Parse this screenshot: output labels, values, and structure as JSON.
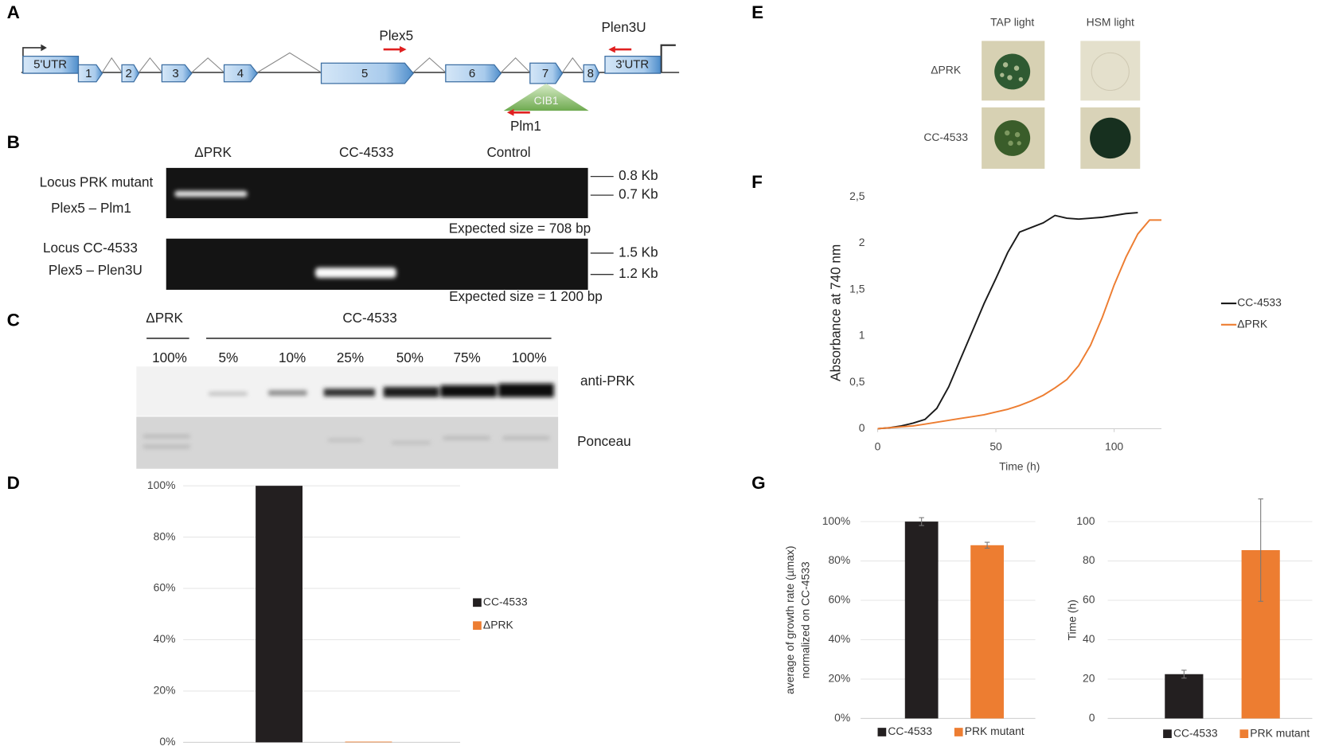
{
  "panel_labels": [
    "A",
    "B",
    "C",
    "D",
    "E",
    "F",
    "G"
  ],
  "gene_diagram": {
    "utr5": "5'UTR",
    "exons": [
      "1",
      "2",
      "3",
      "4",
      "5",
      "6",
      "7",
      "8"
    ],
    "utr3": "3'UTR",
    "primers": {
      "plex5": "Plex5",
      "plen3u": "Plen3U",
      "plm1": "Plm1"
    },
    "insert": "CIB1"
  },
  "gel": {
    "lanes": [
      "ΔPRK",
      "CC-4533",
      "Control"
    ],
    "top": {
      "locus": "Locus PRK mutant",
      "primers": "Plex5 – Plm1",
      "markers": [
        "0.8 Kb",
        "0.7 Kb"
      ],
      "expected": "Expected size = 708 bp"
    },
    "bottom": {
      "locus": "Locus CC-4533",
      "primers": "Plex5 – Plen3U",
      "markers": [
        "1.5 Kb",
        "1.2 Kb"
      ],
      "expected": "Expected size = 1 200 bp"
    }
  },
  "western": {
    "groups": [
      "ΔPRK",
      "CC-4533"
    ],
    "lanes": [
      "100%",
      "5%",
      "10%",
      "25%",
      "50%",
      "75%",
      "100%"
    ],
    "blots": [
      "anti-PRK",
      "Ponceau"
    ]
  },
  "plates": {
    "columns": [
      "TAP light",
      "HSM light"
    ],
    "rows": [
      "ΔPRK",
      "CC-4533"
    ]
  },
  "chart_data": [
    {
      "type": "bar",
      "categories": [
        null
      ],
      "series": [
        {
          "name": "CC-4533",
          "color": "#231f20",
          "values": [
            100
          ]
        },
        {
          "name": "ΔPRK",
          "color": "#ed7d31",
          "values": [
            0
          ]
        }
      ],
      "ylim": [
        0,
        100
      ],
      "yticks": [
        {
          "value": 0,
          "label": "0%"
        },
        {
          "value": 20,
          "label": "20%"
        },
        {
          "value": 40,
          "label": "40%"
        },
        {
          "value": 60,
          "label": "60%"
        },
        {
          "value": 80,
          "label": "80%"
        },
        {
          "value": 100,
          "label": "100%"
        }
      ],
      "grid": true,
      "legend": "right"
    },
    {
      "type": "line",
      "x_label": "Time (h)",
      "y_label": "Absorbance at 740 nm",
      "series": [
        {
          "name": "CC-4533",
          "color": "#1a1a1a",
          "x": [
            0,
            5,
            10,
            15,
            20,
            25,
            30,
            35,
            40,
            45,
            50,
            55,
            60,
            65,
            70,
            75,
            80,
            85,
            90,
            95,
            100,
            105,
            110
          ],
          "values": [
            0,
            0.01,
            0.03,
            0.06,
            0.1,
            0.22,
            0.45,
            0.75,
            1.05,
            1.35,
            1.62,
            1.9,
            2.12,
            2.17,
            2.22,
            2.3,
            2.27,
            2.26,
            2.27,
            2.28,
            2.3,
            2.32,
            2.33
          ]
        },
        {
          "name": "ΔPRK",
          "color": "#ed7d31",
          "x": [
            0,
            5,
            10,
            15,
            20,
            25,
            30,
            35,
            40,
            45,
            50,
            55,
            60,
            65,
            70,
            75,
            80,
            85,
            90,
            95,
            100,
            105,
            110,
            115,
            120
          ],
          "values": [
            0,
            0.01,
            0.02,
            0.03,
            0.05,
            0.07,
            0.09,
            0.11,
            0.13,
            0.15,
            0.18,
            0.21,
            0.25,
            0.3,
            0.36,
            0.44,
            0.53,
            0.68,
            0.9,
            1.2,
            1.55,
            1.85,
            2.1,
            2.25,
            2.25
          ]
        }
      ],
      "xlim": [
        0,
        120
      ],
      "xticks": [
        0,
        50,
        100
      ],
      "ylim": [
        0,
        2.5
      ],
      "yticks": [
        0,
        {
          "value": 0.5,
          "label": "0,5"
        },
        1,
        {
          "value": 1.5,
          "label": "1,5"
        },
        2,
        {
          "value": 2.5,
          "label": "2,5"
        }
      ],
      "grid": false,
      "legend": "right"
    },
    {
      "type": "bar",
      "categories": [
        null
      ],
      "y_label": [
        "average of growth rate (µmax)",
        "normalized on CC-4533"
      ],
      "series": [
        {
          "name": "CC-4533",
          "color": "#231f20",
          "values": [
            100
          ],
          "errors": [
            2
          ]
        },
        {
          "name": "PRK mutant",
          "color": "#ed7d31",
          "values": [
            88
          ],
          "errors": [
            1.5
          ]
        }
      ],
      "ylim": [
        0,
        100
      ],
      "yticks": [
        {
          "value": 0,
          "label": "0%"
        },
        {
          "value": 20,
          "label": "20%"
        },
        {
          "value": 40,
          "label": "40%"
        },
        {
          "value": 60,
          "label": "60%"
        },
        {
          "value": 80,
          "label": "80%"
        },
        {
          "value": 100,
          "label": "100%"
        }
      ],
      "grid": true,
      "legend": "bottom"
    },
    {
      "type": "bar",
      "categories": [
        null
      ],
      "y_label": [
        "Time (h)"
      ],
      "series": [
        {
          "name": "CC-4533",
          "color": "#231f20",
          "values": [
            22.5
          ],
          "errors": [
            2
          ]
        },
        {
          "name": "PRK mutant",
          "color": "#ed7d31",
          "values": [
            85.5
          ],
          "errors": [
            26
          ]
        }
      ],
      "ylim": [
        0,
        100
      ],
      "yticks": [
        0,
        20,
        40,
        60,
        80,
        100
      ],
      "grid": true,
      "legend": "bottom"
    }
  ]
}
